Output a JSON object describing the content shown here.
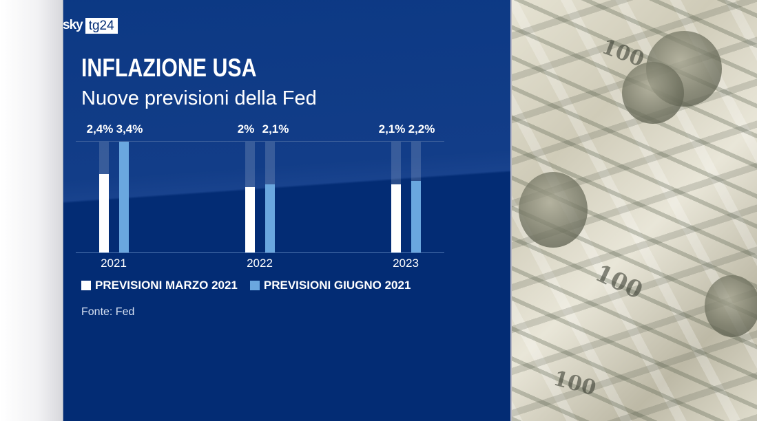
{
  "brand": {
    "sky": "sky",
    "tg24": "tg24"
  },
  "title": "INFLAZIONE USA",
  "subtitle": "Nuove previsioni della Fed",
  "legend": [
    {
      "label": "PREVISIONI MARZO 2021",
      "color": "#ffffff"
    },
    {
      "label": "PREVISIONI GIUGNO 2021",
      "color": "#6aa7df"
    }
  ],
  "source": "Fonte: Fed",
  "photo": {
    "bill_text_1": "100",
    "bill_text_2": "100",
    "bill_text_3": "100"
  },
  "colors": {
    "panel": "#032c74",
    "march": "#ffffff",
    "june": "#6aa7df"
  },
  "chart_data": {
    "type": "bar",
    "title": "INFLAZIONE USA",
    "subtitle": "Nuove previsioni della Fed",
    "categories": [
      "2021",
      "2022",
      "2023"
    ],
    "series": [
      {
        "name": "PREVISIONI MARZO 2021",
        "values": [
          2.4,
          2.0,
          2.1
        ],
        "labels": [
          "2,4%",
          "2%",
          "2,1%"
        ],
        "color": "#ffffff"
      },
      {
        "name": "PREVISIONI GIUGNO 2021",
        "values": [
          3.4,
          2.1,
          2.2
        ],
        "labels": [
          "3,4%",
          "2,1%",
          "2,2%"
        ],
        "color": "#6aa7df"
      }
    ],
    "xlabel": "",
    "ylabel": "",
    "ylim": [
      0,
      3.4
    ],
    "grid": false,
    "legend_position": "bottom",
    "source": "Fonte: Fed"
  }
}
